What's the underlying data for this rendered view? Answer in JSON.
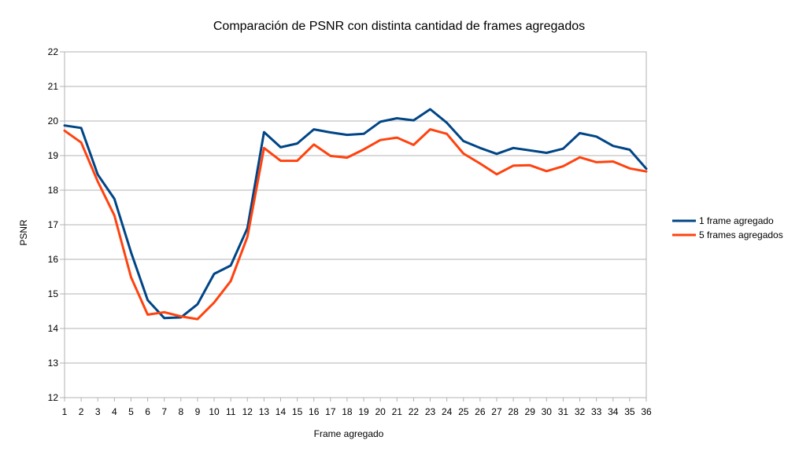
{
  "chart_data": {
    "type": "line",
    "title": "Comparación de PSNR con distinta cantidad de frames agregados",
    "xlabel": "Frame agregado",
    "ylabel": "PSNR",
    "x": [
      1,
      2,
      3,
      4,
      5,
      6,
      7,
      8,
      9,
      10,
      11,
      12,
      13,
      14,
      15,
      16,
      17,
      18,
      19,
      20,
      21,
      22,
      23,
      24,
      25,
      26,
      27,
      28,
      29,
      30,
      31,
      32,
      33,
      34,
      35,
      36
    ],
    "ylim": [
      12,
      22
    ],
    "yticks": [
      12,
      13,
      14,
      15,
      16,
      17,
      18,
      19,
      20,
      21,
      22
    ],
    "grid": true,
    "legend": "right",
    "series": [
      {
        "name": "1 frame agregado",
        "color": "#004586",
        "values": [
          19.87,
          19.8,
          18.45,
          17.75,
          16.2,
          14.82,
          14.3,
          14.32,
          14.7,
          15.58,
          15.82,
          16.9,
          19.68,
          19.24,
          19.35,
          19.76,
          19.67,
          19.6,
          19.63,
          19.98,
          20.08,
          20.02,
          20.34,
          19.95,
          19.42,
          19.22,
          19.05,
          19.22,
          19.15,
          19.08,
          19.2,
          19.65,
          19.55,
          19.28,
          19.17,
          18.62
        ]
      },
      {
        "name": "5 frames agregados",
        "color": "#ff420e",
        "values": [
          19.72,
          19.38,
          18.25,
          17.27,
          15.48,
          14.4,
          14.47,
          14.35,
          14.27,
          14.75,
          15.37,
          16.65,
          19.22,
          18.85,
          18.85,
          19.32,
          18.99,
          18.94,
          19.18,
          19.45,
          19.52,
          19.31,
          19.76,
          19.63,
          19.06,
          18.77,
          18.46,
          18.71,
          18.72,
          18.55,
          18.69,
          18.95,
          18.81,
          18.83,
          18.63,
          18.54
        ]
      }
    ]
  }
}
